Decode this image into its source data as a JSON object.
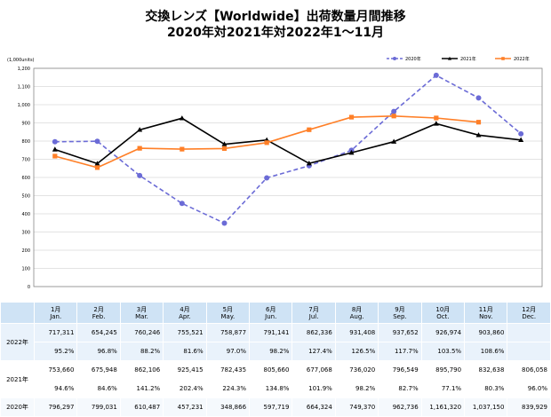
{
  "title_line1": "交換レンズ【Worldwide】出荷数量月間推移",
  "title_line2": "2020年対2021年対2022年1～11月",
  "chart_data": {
    "type": "line",
    "unit_label": "(1,000units)",
    "categories": [
      "1月",
      "2月",
      "3月",
      "4月",
      "5月",
      "6月",
      "7月",
      "8月",
      "9月",
      "10月",
      "11月",
      "12月"
    ],
    "yticks": [
      "0",
      "100",
      "200",
      "300",
      "400",
      "500",
      "600",
      "700",
      "800",
      "900",
      "1,000",
      "1,100",
      "1,200"
    ],
    "ylim": [
      0,
      1200
    ],
    "legend_position": "top-right",
    "series": [
      {
        "name": "2020年",
        "color": "#6b6bd6",
        "style": "dashed-circle",
        "values": [
          796.297,
          799.031,
          610.487,
          457.231,
          348.866,
          597.719,
          664.324,
          749.37,
          962.736,
          1161.32,
          1037.15,
          839.929
        ]
      },
      {
        "name": "2021年",
        "color": "#000000",
        "style": "solid-triangle",
        "values": [
          753.66,
          675.948,
          862.106,
          925.415,
          782.435,
          805.66,
          677.068,
          736.02,
          796.549,
          895.79,
          832.638,
          806.058
        ]
      },
      {
        "name": "2022年",
        "color": "#ff7f27",
        "style": "solid-square",
        "values": [
          717.311,
          654.245,
          760.246,
          755.521,
          758.877,
          791.141,
          862.336,
          931.408,
          937.652,
          926.974,
          903.86,
          null
        ]
      }
    ]
  },
  "table": {
    "months": [
      {
        "jp": "1月",
        "en": "Jan."
      },
      {
        "jp": "2月",
        "en": "Feb."
      },
      {
        "jp": "3月",
        "en": "Mar."
      },
      {
        "jp": "4月",
        "en": "Apr."
      },
      {
        "jp": "5月",
        "en": "May."
      },
      {
        "jp": "6月",
        "en": "Jun."
      },
      {
        "jp": "7月",
        "en": "Jul."
      },
      {
        "jp": "8月",
        "en": "Aug."
      },
      {
        "jp": "9月",
        "en": "Sep."
      },
      {
        "jp": "10月",
        "en": "Oct."
      },
      {
        "jp": "11月",
        "en": "Nov."
      },
      {
        "jp": "12月",
        "en": "Dec."
      }
    ],
    "rows": [
      {
        "year": "2022年",
        "values": [
          "717,311",
          "654,245",
          "760,246",
          "755,521",
          "758,877",
          "791,141",
          "862,336",
          "931,408",
          "937,652",
          "926,974",
          "903,860",
          ""
        ],
        "ratios": [
          "95.2%",
          "96.8%",
          "88.2%",
          "81.6%",
          "97.0%",
          "98.2%",
          "127.4%",
          "126.5%",
          "117.7%",
          "103.5%",
          "108.6%",
          ""
        ]
      },
      {
        "year": "2021年",
        "values": [
          "753,660",
          "675,948",
          "862,106",
          "925,415",
          "782,435",
          "805,660",
          "677,068",
          "736,020",
          "796,549",
          "895,790",
          "832,638",
          "806,058"
        ],
        "ratios": [
          "94.6%",
          "84.6%",
          "141.2%",
          "202.4%",
          "224.3%",
          "134.8%",
          "101.9%",
          "98.2%",
          "82.7%",
          "77.1%",
          "80.3%",
          "96.0%"
        ]
      },
      {
        "year": "2020年",
        "values": [
          "796,297",
          "799,031",
          "610,487",
          "457,231",
          "348,866",
          "597,719",
          "664,324",
          "749,370",
          "962,736",
          "1,161,320",
          "1,037,150",
          "839,929"
        ]
      }
    ]
  }
}
